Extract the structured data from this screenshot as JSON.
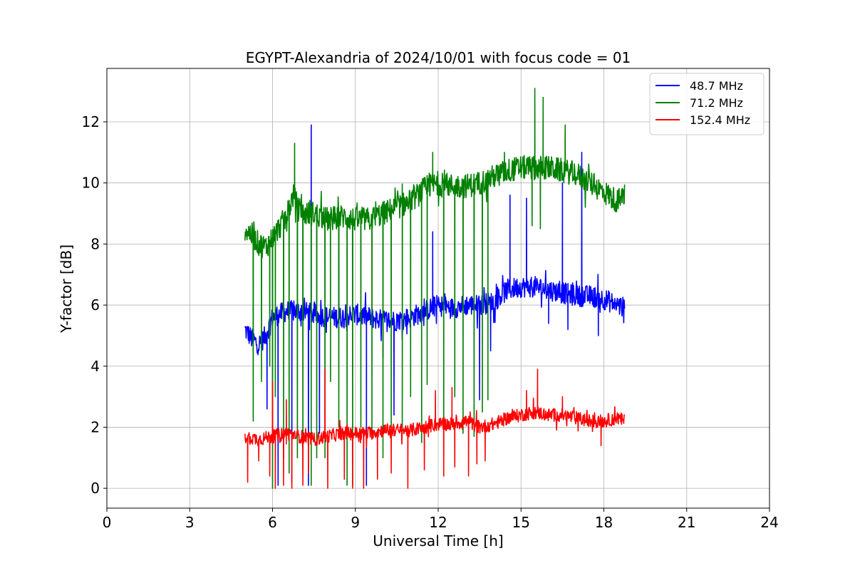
{
  "chart_data": {
    "type": "line",
    "title": "EGYPT-Alexandria of 2024/10/01 with focus code = 01",
    "xlabel": "Universal Time [h]",
    "ylabel": "Y-factor [dB]",
    "xlim": [
      0,
      24
    ],
    "ylim": [
      -0.65,
      13.75
    ],
    "xticks": [
      0,
      3,
      6,
      9,
      12,
      15,
      18,
      21,
      24
    ],
    "yticks": [
      0,
      2,
      4,
      6,
      8,
      10,
      12
    ],
    "xtick_labels": [
      "0",
      "3",
      "6",
      "9",
      "12",
      "15",
      "18",
      "21",
      "24"
    ],
    "ytick_labels": [
      "0",
      "2",
      "4",
      "6",
      "8",
      "10",
      "12"
    ],
    "grid": true,
    "legend_position": "top-right",
    "series": [
      {
        "name": "48.7 MHz",
        "color": "#0000ff",
        "x": [
          5.0,
          5.25,
          5.5,
          5.75,
          6.0,
          6.5,
          7.0,
          7.5,
          8.0,
          8.5,
          9.0,
          9.5,
          10.0,
          10.5,
          11.0,
          11.5,
          12.0,
          12.5,
          13.0,
          13.5,
          14.0,
          14.5,
          15.0,
          15.5,
          16.0,
          16.5,
          17.0,
          17.5,
          18.0,
          18.5,
          18.75
        ],
        "values": [
          5.2,
          4.9,
          4.7,
          5.0,
          5.6,
          5.8,
          5.8,
          5.7,
          5.6,
          5.6,
          5.7,
          5.6,
          5.5,
          5.5,
          5.6,
          5.8,
          6.0,
          5.9,
          6.0,
          6.0,
          6.1,
          6.5,
          6.6,
          6.6,
          6.5,
          6.4,
          6.3,
          6.3,
          6.2,
          6.0,
          5.9
        ],
        "spikes_up": [
          [
            7.4,
            11.9
          ],
          [
            17.2,
            11.0
          ],
          [
            15.2,
            9.5
          ],
          [
            14.6,
            9.6
          ],
          [
            16.5,
            10.0
          ],
          [
            11.8,
            8.4
          ],
          [
            8.4,
            8.3
          ]
        ],
        "spikes_down": [
          [
            5.8,
            2.6
          ],
          [
            6.2,
            0.1
          ],
          [
            6.7,
            0.2
          ],
          [
            7.3,
            0.1
          ],
          [
            7.7,
            1.8
          ],
          [
            9.4,
            0.1
          ],
          [
            10.4,
            2.4
          ],
          [
            10.0,
            4.3
          ],
          [
            13.5,
            2.9
          ],
          [
            13.9,
            4.5
          ],
          [
            16.0,
            5.4
          ],
          [
            16.7,
            5.2
          ],
          [
            17.8,
            5.0
          ]
        ]
      },
      {
        "name": "71.2 MHz",
        "color": "#008000",
        "x": [
          5.0,
          5.25,
          5.5,
          5.75,
          6.0,
          6.5,
          6.75,
          7.0,
          7.5,
          8.0,
          8.5,
          9.0,
          9.5,
          10.0,
          10.5,
          11.0,
          11.5,
          12.0,
          12.5,
          13.0,
          13.5,
          14.0,
          14.5,
          15.0,
          15.5,
          16.0,
          16.5,
          17.0,
          17.5,
          18.0,
          18.5,
          18.75
        ],
        "values": [
          8.5,
          8.3,
          8.0,
          7.9,
          8.2,
          8.9,
          9.6,
          9.0,
          9.0,
          8.8,
          8.9,
          8.8,
          8.8,
          9.0,
          9.2,
          9.4,
          9.8,
          10.0,
          9.9,
          9.9,
          10.0,
          10.2,
          10.4,
          10.5,
          10.5,
          10.5,
          10.4,
          10.3,
          10.0,
          9.7,
          9.4,
          9.6
        ],
        "spikes_up": [
          [
            6.8,
            11.3
          ],
          [
            11.8,
            11.0
          ],
          [
            15.5,
            13.1
          ],
          [
            15.8,
            12.8
          ],
          [
            16.6,
            11.9
          ],
          [
            14.4,
            11.0
          ]
        ],
        "spikes_down": [
          [
            5.3,
            2.2
          ],
          [
            5.6,
            3.5
          ],
          [
            5.9,
            4.0
          ],
          [
            6.0,
            0.0
          ],
          [
            6.1,
            3.0
          ],
          [
            6.4,
            1.0
          ],
          [
            6.6,
            0.5
          ],
          [
            6.9,
            1.0
          ],
          [
            7.1,
            0.6
          ],
          [
            7.4,
            0.1
          ],
          [
            7.6,
            1.0
          ],
          [
            7.9,
            1.0
          ],
          [
            8.1,
            3.5
          ],
          [
            8.4,
            2.0
          ],
          [
            8.7,
            0.1
          ],
          [
            8.9,
            0.1
          ],
          [
            9.2,
            2.0
          ],
          [
            9.6,
            1.7
          ],
          [
            10.0,
            1.0
          ],
          [
            10.3,
            2.0
          ],
          [
            10.7,
            2.0
          ],
          [
            11.0,
            3.0
          ],
          [
            11.4,
            1.5
          ],
          [
            11.6,
            3.4
          ],
          [
            12.2,
            2.0
          ],
          [
            12.6,
            3.0
          ],
          [
            12.9,
            1.8
          ],
          [
            13.3,
            1.7
          ],
          [
            13.6,
            2.5
          ],
          [
            13.8,
            2.9
          ],
          [
            15.4,
            8.6
          ],
          [
            15.7,
            8.5
          ]
        ]
      },
      {
        "name": "152.4 MHz",
        "color": "#ff0000",
        "x": [
          5.0,
          5.5,
          6.0,
          6.5,
          7.0,
          7.5,
          8.0,
          8.5,
          9.0,
          9.5,
          10.0,
          10.5,
          11.0,
          11.5,
          12.0,
          12.5,
          13.0,
          13.5,
          14.0,
          14.5,
          15.0,
          15.5,
          16.0,
          16.5,
          17.0,
          17.5,
          18.0,
          18.5,
          18.75
        ],
        "values": [
          1.7,
          1.6,
          1.7,
          1.8,
          1.7,
          1.6,
          1.7,
          1.8,
          1.8,
          1.8,
          1.9,
          1.9,
          1.9,
          2.0,
          2.1,
          2.1,
          2.2,
          2.0,
          2.1,
          2.3,
          2.4,
          2.5,
          2.4,
          2.4,
          2.3,
          2.2,
          2.2,
          2.3,
          2.2
        ],
        "spikes_up": [
          [
            6.0,
            3.5
          ],
          [
            6.5,
            2.9
          ],
          [
            7.9,
            3.9
          ],
          [
            11.9,
            3.2
          ],
          [
            15.6,
            3.9
          ],
          [
            15.2,
            3.2
          ],
          [
            16.5,
            3.0
          ],
          [
            12.5,
            3.3
          ]
        ],
        "spikes_down": [
          [
            5.1,
            0.2
          ],
          [
            5.5,
            0.9
          ],
          [
            5.9,
            0.4
          ],
          [
            6.1,
            0.0
          ],
          [
            6.4,
            0.1
          ],
          [
            6.7,
            0.0
          ],
          [
            7.1,
            0.1
          ],
          [
            7.3,
            0.5
          ],
          [
            8.0,
            0.0
          ],
          [
            8.6,
            0.3
          ],
          [
            8.9,
            0.0
          ],
          [
            9.3,
            0.0
          ],
          [
            9.8,
            0.3
          ],
          [
            10.3,
            0.5
          ],
          [
            10.9,
            0.0
          ],
          [
            11.5,
            0.6
          ],
          [
            12.2,
            0.4
          ],
          [
            12.6,
            0.7
          ],
          [
            13.1,
            0.4
          ],
          [
            13.4,
            0.8
          ],
          [
            13.7,
            0.9
          ],
          [
            17.9,
            1.4
          ]
        ]
      }
    ]
  }
}
